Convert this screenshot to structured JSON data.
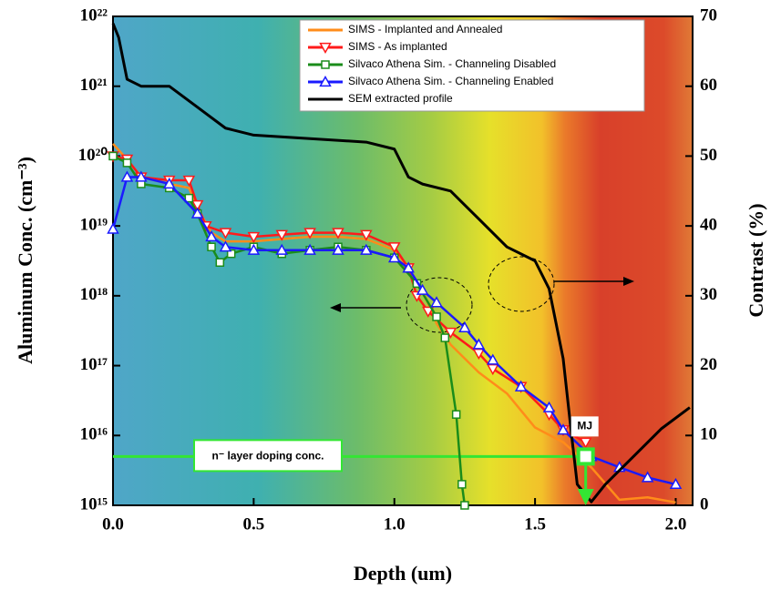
{
  "chart_data": {
    "type": "line",
    "x_label": "Depth (um)",
    "y_label": "Aluminum Conc. (cm⁻³)",
    "y2_label": "Contrast (%)",
    "xlim": [
      0,
      2.06
    ],
    "ylim": [
      1000000000000000.0,
      1e+22
    ],
    "y2lim": [
      0,
      70
    ],
    "log_y": true,
    "xticks": [
      {
        "value": 0,
        "label": "0.0"
      },
      {
        "value": 0.5,
        "label": "0.5"
      },
      {
        "value": 1,
        "label": "1.0"
      },
      {
        "value": 1.5,
        "label": "1.5"
      },
      {
        "value": 2,
        "label": "2.0"
      }
    ],
    "yticks": [
      {
        "value": 1000000000000000.0,
        "label": "10¹⁵"
      },
      {
        "value": 1e+16,
        "label": "10¹⁶"
      },
      {
        "value": 1e+17,
        "label": "10¹⁷"
      },
      {
        "value": 1e+18,
        "label": "10¹⁸"
      },
      {
        "value": 1e+19,
        "label": "10¹⁹"
      },
      {
        "value": 1e+20,
        "label": "10²⁰"
      },
      {
        "value": 1e+21,
        "label": "10²¹"
      },
      {
        "value": 1e+22,
        "label": "10²²"
      }
    ],
    "y2ticks": [
      0,
      10,
      20,
      30,
      40,
      50,
      60,
      70
    ],
    "legend": "top",
    "series": [
      {
        "name": "SIMS - Implanted and Annealed",
        "color": "#ff8c1a",
        "marker": "none",
        "x": [
          0,
          0.05,
          0.1,
          0.2,
          0.27,
          0.3,
          0.35,
          0.4,
          0.5,
          0.6,
          0.7,
          0.8,
          0.9,
          1.0,
          1.05,
          1.1,
          1.15,
          1.2,
          1.3,
          1.4,
          1.5,
          1.6,
          1.7,
          1.8,
          1.9,
          2.0
        ],
        "values": [
          1.5e+20,
          9e+19,
          5e+19,
          4e+19,
          3.5e+19,
          1.8e+19,
          8e+18,
          6e+18,
          6e+18,
          6.5e+18,
          7e+18,
          7e+18,
          6.5e+18,
          4.5e+18,
          2.5e+18,
          1.2e+18,
          4e+17,
          2e+17,
          8e+16,
          4e+16,
          1.3e+16,
          8000000000000000.0,
          3500000000000000.0,
          1200000000000000.0,
          1300000000000000.0,
          1100000000000000.0
        ]
      },
      {
        "name": "SIMS - As implanted",
        "color": "#ff1a1a",
        "marker": "tri-down",
        "x": [
          0,
          0.05,
          0.1,
          0.2,
          0.27,
          0.3,
          0.33,
          0.4,
          0.5,
          0.6,
          0.7,
          0.8,
          0.9,
          1.0,
          1.05,
          1.08,
          1.12,
          1.2,
          1.3,
          1.35,
          1.45,
          1.55,
          1.6,
          1.68
        ],
        "values": [
          1e+20,
          9e+19,
          5e+19,
          4.5e+19,
          4.5e+19,
          2e+19,
          1e+19,
          8e+18,
          7e+18,
          7.5e+18,
          8e+18,
          8e+18,
          7.5e+18,
          5e+18,
          2.5e+18,
          1e+18,
          6e+17,
          3e+17,
          1.5e+17,
          9e+16,
          5e+16,
          2e+16,
          1.2e+16,
          8000000000000000.0
        ]
      },
      {
        "name": "Silvaco Athena Sim. - Channeling Disabled",
        "color": "#1a8c1a",
        "marker": "square",
        "x": [
          0,
          0.05,
          0.1,
          0.2,
          0.27,
          0.3,
          0.35,
          0.38,
          0.42,
          0.5,
          0.6,
          0.7,
          0.8,
          0.9,
          1.0,
          1.08,
          1.15,
          1.18,
          1.22,
          1.24,
          1.25
        ],
        "values": [
          1e+20,
          8e+19,
          4e+19,
          3.5e+19,
          2.5e+19,
          1.5e+19,
          5e+18,
          3e+18,
          4e+18,
          5e+18,
          4e+18,
          4.5e+18,
          5e+18,
          4.5e+18,
          3.5e+18,
          1.5e+18,
          5e+17,
          2.5e+17,
          2e+16,
          2000000000000000.0,
          1000000000000000.0
        ]
      },
      {
        "name": "Silvaco Athena Sim. - Channeling Enabled",
        "color": "#1a1aff",
        "marker": "tri-up",
        "x": [
          0,
          0.05,
          0.1,
          0.2,
          0.3,
          0.35,
          0.4,
          0.5,
          0.6,
          0.7,
          0.8,
          0.9,
          1.0,
          1.05,
          1.1,
          1.15,
          1.25,
          1.3,
          1.35,
          1.45,
          1.55,
          1.6,
          1.7,
          1.8,
          1.9,
          2.0
        ],
        "values": [
          9e+18,
          5e+19,
          5e+19,
          4e+19,
          1.5e+19,
          7e+18,
          5e+18,
          4.5e+18,
          4.5e+18,
          4.5e+18,
          4.5e+18,
          4.5e+18,
          3.5e+18,
          2.5e+18,
          1.2e+18,
          8e+17,
          3.5e+17,
          2e+17,
          1.2e+17,
          5e+16,
          2.5e+16,
          1.2e+16,
          5000000000000000.0,
          3500000000000000.0,
          2500000000000000.0,
          2000000000000000.0
        ]
      },
      {
        "name": "SEM extracted profile",
        "color": "#000000",
        "marker": "none",
        "axis": "y2",
        "x": [
          0,
          0.02,
          0.05,
          0.1,
          0.2,
          0.3,
          0.4,
          0.5,
          0.7,
          0.9,
          1.0,
          1.05,
          1.1,
          1.2,
          1.3,
          1.4,
          1.5,
          1.55,
          1.6,
          1.63,
          1.65,
          1.7,
          1.75,
          1.85,
          1.95,
          2.05
        ],
        "values": [
          69,
          67,
          61,
          60,
          60,
          57,
          54,
          53,
          52.5,
          52,
          51,
          47,
          46,
          45,
          41,
          37,
          35,
          31,
          21,
          10,
          3,
          0.5,
          3,
          7,
          11,
          14
        ]
      }
    ],
    "reference_line": {
      "label": "n⁻ layer doping conc.",
      "value": 5000000000000000.0,
      "color": "#33e633"
    },
    "junction": {
      "label": "MJ",
      "x": 1.68,
      "value": 5000000000000000.0
    }
  }
}
